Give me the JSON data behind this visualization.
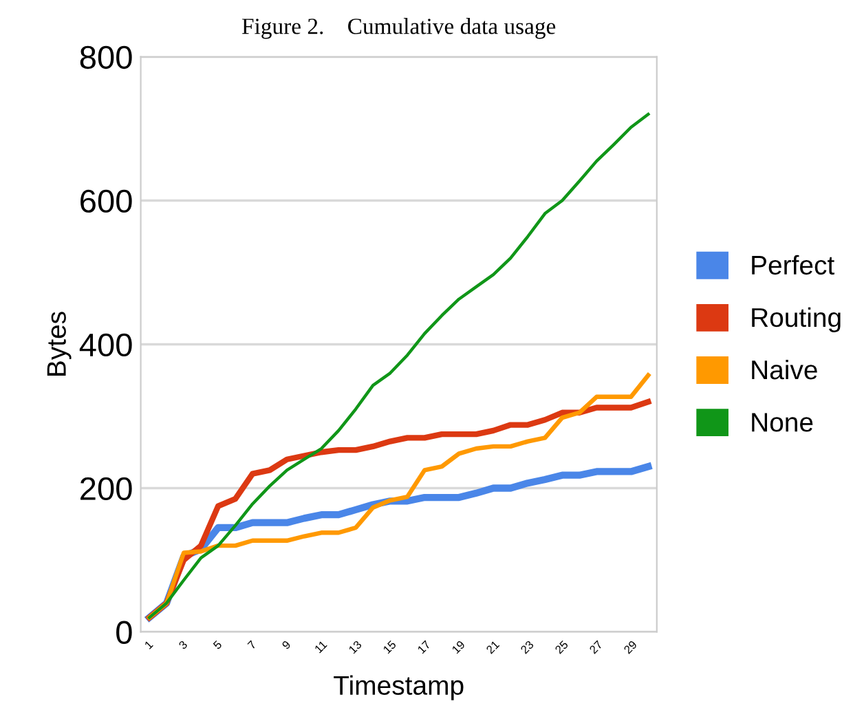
{
  "chart_data": {
    "type": "line",
    "title": "Figure 2.    Cumulative data usage",
    "xlabel": "Timestamp",
    "ylabel": "Bytes",
    "categories": [
      "1",
      null,
      "3",
      null,
      "5",
      null,
      "7",
      null,
      "9",
      null,
      "11",
      null,
      "13",
      null,
      "15",
      null,
      "17",
      null,
      "19",
      null,
      "21",
      null,
      "23",
      null,
      "25",
      null,
      "27",
      null,
      "29",
      null
    ],
    "series": [
      {
        "name": "Perfect",
        "color": "#4a86e8",
        "values": [
          20,
          40,
          105,
          115,
          145,
          145,
          152,
          152,
          152,
          158,
          163,
          163,
          170,
          177,
          182,
          182,
          187,
          187,
          187,
          193,
          200,
          200,
          207,
          212,
          218,
          218,
          223,
          223,
          223,
          230
        ]
      },
      {
        "name": "Routing",
        "color": "#dc3912",
        "values": [
          20,
          40,
          100,
          120,
          175,
          185,
          220,
          225,
          240,
          245,
          250,
          253,
          253,
          258,
          265,
          270,
          270,
          275,
          275,
          275,
          280,
          288,
          288,
          295,
          305,
          305,
          312,
          312,
          312,
          320
        ]
      },
      {
        "name": "Naive",
        "color": "#ff9900",
        "values": [
          20,
          40,
          110,
          112,
          120,
          120,
          127,
          127,
          127,
          133,
          138,
          138,
          145,
          173,
          183,
          188,
          225,
          230,
          248,
          255,
          258,
          258,
          265,
          270,
          298,
          305,
          327,
          327,
          327,
          357
        ]
      },
      {
        "name": "None",
        "color": "#109618",
        "values": [
          20,
          40,
          72,
          103,
          120,
          148,
          178,
          203,
          225,
          240,
          255,
          280,
          310,
          343,
          360,
          385,
          415,
          440,
          463,
          480,
          497,
          520,
          550,
          582,
          600,
          627,
          655,
          678,
          702,
          720
        ]
      }
    ],
    "ylim": [
      0,
      800
    ],
    "yticks": [
      0,
      200,
      400,
      600,
      800
    ],
    "grid": "y",
    "legend": "right",
    "marker": "none",
    "line_style": "solid"
  }
}
